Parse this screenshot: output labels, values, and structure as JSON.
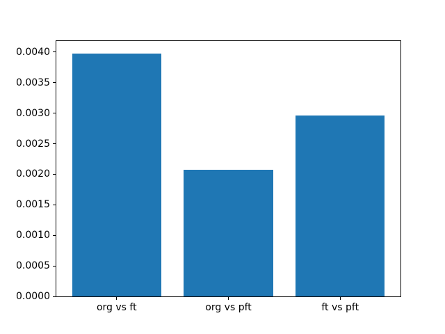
{
  "figure": {
    "background": "#ffffff"
  },
  "chart_data": {
    "type": "bar",
    "title": "",
    "xlabel": "",
    "ylabel": "",
    "categories": [
      "org vs ft",
      "org vs pft",
      "ft vs pft"
    ],
    "values": [
      0.00398,
      0.00207,
      0.00296
    ],
    "bar_color": "#1f77b4",
    "ylim": [
      0,
      0.00418
    ],
    "xlim": [
      -0.54,
      2.54
    ],
    "bar_width_fraction": 0.8,
    "yticks": [
      "0.0000",
      "0.0005",
      "0.0010",
      "0.0015",
      "0.0020",
      "0.0025",
      "0.0030",
      "0.0035",
      "0.0040"
    ],
    "grid": false,
    "legend": "none"
  }
}
